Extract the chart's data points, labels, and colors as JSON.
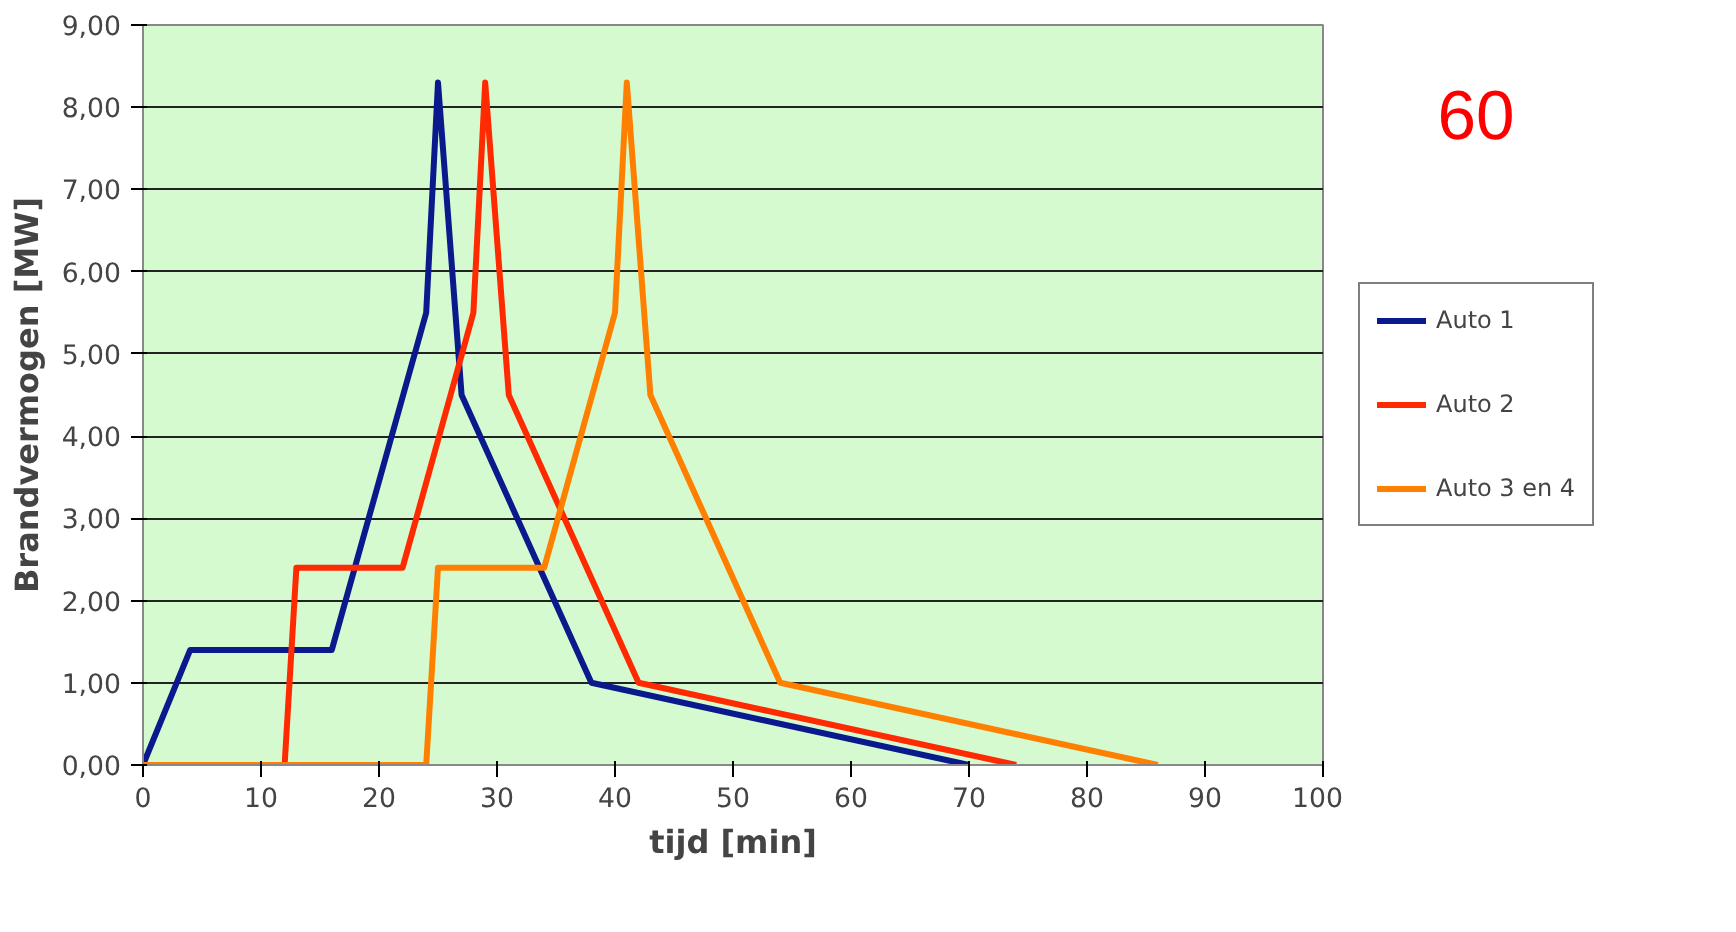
{
  "chart_data": {
    "type": "line",
    "xlabel": "tijd [min]",
    "ylabel": "Brandvermogen [MW]",
    "xlim": [
      0,
      100
    ],
    "xticks": [
      0,
      10,
      20,
      30,
      40,
      50,
      60,
      70,
      80,
      90,
      100
    ],
    "ylim": [
      0,
      9
    ],
    "yticks": [
      {
        "value": 0,
        "label": "0,00"
      },
      {
        "value": 1,
        "label": "1,00"
      },
      {
        "value": 2,
        "label": "2,00"
      },
      {
        "value": 3,
        "label": "3,00"
      },
      {
        "value": 4,
        "label": "4,00"
      },
      {
        "value": 5,
        "label": "5,00"
      },
      {
        "value": 6,
        "label": "6,00"
      },
      {
        "value": 7,
        "label": "7,00"
      },
      {
        "value": 8,
        "label": "8,00"
      },
      {
        "value": 9,
        "label": "9,00"
      }
    ],
    "grid": "y",
    "legend": "right",
    "marker": "none",
    "line_style": "solid",
    "annotations": [
      "60"
    ],
    "series": [
      {
        "name": "Auto 1",
        "color": "#0a1a8c",
        "x": [
          0,
          4,
          16,
          24,
          25,
          27,
          38,
          70
        ],
        "values": [
          0,
          1.4,
          1.4,
          5.5,
          8.3,
          4.5,
          1.0,
          0
        ]
      },
      {
        "name": "Auto 2",
        "color": "#ff2a00",
        "x": [
          0,
          12,
          13,
          22,
          28,
          29,
          31,
          42,
          74
        ],
        "values": [
          0,
          0,
          2.4,
          2.4,
          5.5,
          8.3,
          4.5,
          1.0,
          0
        ]
      },
      {
        "name": "Auto 3 en 4",
        "color": "#ff8000",
        "x": [
          0,
          24,
          25,
          34,
          40,
          41,
          43,
          54,
          86
        ],
        "values": [
          0,
          0,
          2.4,
          2.4,
          5.5,
          8.3,
          4.5,
          1.0,
          0
        ]
      }
    ]
  }
}
